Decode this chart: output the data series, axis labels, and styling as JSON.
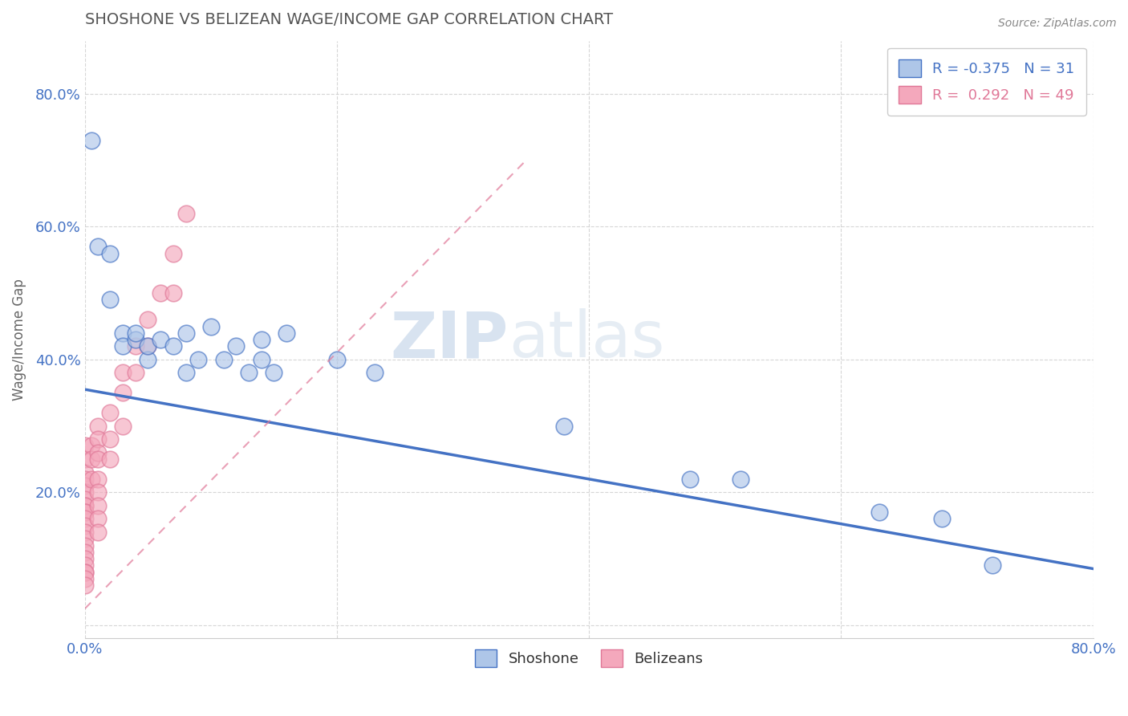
{
  "title": "SHOSHONE VS BELIZEAN WAGE/INCOME GAP CORRELATION CHART",
  "source": "Source: ZipAtlas.com",
  "xlabel": "",
  "ylabel": "Wage/Income Gap",
  "xlim": [
    0.0,
    0.8
  ],
  "ylim": [
    -0.02,
    0.88
  ],
  "x_ticks": [
    0.0,
    0.2,
    0.4,
    0.6,
    0.8
  ],
  "x_tick_labels": [
    "0.0%",
    "",
    "",
    "",
    "80.0%"
  ],
  "y_ticks": [
    0.0,
    0.2,
    0.4,
    0.6,
    0.8
  ],
  "y_tick_labels": [
    "",
    "20.0%",
    "40.0%",
    "60.0%",
    "80.0%"
  ],
  "shoshone_color": "#aec6e8",
  "belizean_color": "#f4a8bc",
  "shoshone_line_color": "#4472c4",
  "belizean_line_color": "#e07898",
  "shoshone_r": -0.375,
  "shoshone_n": 31,
  "belizean_r": 0.292,
  "belizean_n": 49,
  "shoshone_x": [
    0.005,
    0.01,
    0.02,
    0.02,
    0.03,
    0.03,
    0.04,
    0.04,
    0.05,
    0.05,
    0.06,
    0.07,
    0.08,
    0.08,
    0.09,
    0.1,
    0.11,
    0.12,
    0.13,
    0.14,
    0.14,
    0.15,
    0.16,
    0.2,
    0.23,
    0.38,
    0.48,
    0.52,
    0.63,
    0.68,
    0.72
  ],
  "shoshone_y": [
    0.73,
    0.57,
    0.56,
    0.49,
    0.44,
    0.42,
    0.43,
    0.44,
    0.4,
    0.42,
    0.43,
    0.42,
    0.38,
    0.44,
    0.4,
    0.45,
    0.4,
    0.42,
    0.38,
    0.4,
    0.43,
    0.38,
    0.44,
    0.4,
    0.38,
    0.3,
    0.22,
    0.22,
    0.17,
    0.16,
    0.09
  ],
  "belizean_x": [
    0.0,
    0.0,
    0.0,
    0.0,
    0.0,
    0.0,
    0.0,
    0.0,
    0.0,
    0.0,
    0.0,
    0.0,
    0.0,
    0.0,
    0.0,
    0.0,
    0.0,
    0.0,
    0.0,
    0.0,
    0.0,
    0.0,
    0.0,
    0.005,
    0.005,
    0.005,
    0.01,
    0.01,
    0.01,
    0.01,
    0.01,
    0.01,
    0.01,
    0.01,
    0.01,
    0.02,
    0.02,
    0.02,
    0.03,
    0.03,
    0.03,
    0.04,
    0.04,
    0.05,
    0.05,
    0.06,
    0.07,
    0.07,
    0.08
  ],
  "belizean_y": [
    0.27,
    0.25,
    0.23,
    0.22,
    0.21,
    0.2,
    0.19,
    0.18,
    0.18,
    0.17,
    0.17,
    0.16,
    0.15,
    0.14,
    0.13,
    0.12,
    0.11,
    0.1,
    0.09,
    0.08,
    0.08,
    0.07,
    0.06,
    0.27,
    0.25,
    0.22,
    0.3,
    0.28,
    0.26,
    0.25,
    0.22,
    0.2,
    0.18,
    0.16,
    0.14,
    0.32,
    0.28,
    0.25,
    0.38,
    0.35,
    0.3,
    0.42,
    0.38,
    0.46,
    0.42,
    0.5,
    0.56,
    0.5,
    0.62
  ],
  "shoshone_line_x": [
    0.0,
    0.8
  ],
  "shoshone_line_y": [
    0.355,
    0.085
  ],
  "belizean_line_x": [
    0.0,
    0.35
  ],
  "belizean_line_y": [
    0.025,
    0.7
  ],
  "watermark_zip": "ZIP",
  "watermark_atlas": "atlas",
  "background_color": "#ffffff",
  "grid_color": "#cccccc",
  "title_color": "#555555",
  "axis_tick_color": "#4472c4"
}
